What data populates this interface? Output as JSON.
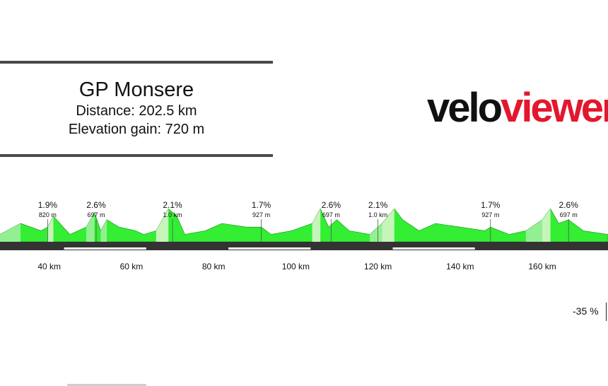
{
  "race": {
    "title": "GP Monsere",
    "distance": "Distance: 202.5 km",
    "elevation_gain": "Elevation gain: 720 m"
  },
  "logo": {
    "part1": "velo",
    "part2": "viewer",
    "colors": {
      "part1": "#111111",
      "part2": "#e3172d"
    }
  },
  "readout": {
    "grade": "-35 %"
  },
  "colors": {
    "profile_fill": "#33ee33",
    "profile_light": "#9cf09c",
    "profile_pale": "#d6f5c8",
    "road_band": "#333333",
    "segment_bar": "#ffffff",
    "frame_line": "#4a4a4a"
  },
  "chart_data": {
    "type": "area",
    "xlabel": "",
    "ylabel": "",
    "xunit": "km",
    "xlim": [
      28,
      176
    ],
    "x_ticks": [
      {
        "value": 40,
        "label": "40 km"
      },
      {
        "value": 60,
        "label": "60 km"
      },
      {
        "value": 80,
        "label": "80 km"
      },
      {
        "value": 100,
        "label": "100 km"
      },
      {
        "value": 120,
        "label": "120 km"
      },
      {
        "value": 140,
        "label": "140 km"
      },
      {
        "value": 160,
        "label": "160 km"
      }
    ],
    "climbs": [
      {
        "km": 39.6,
        "grade": "1.9%",
        "length": "820 m"
      },
      {
        "km": 51.4,
        "grade": "2.6%",
        "length": "697 m"
      },
      {
        "km": 70.0,
        "grade": "2.1%",
        "length": "1.0 km"
      },
      {
        "km": 91.6,
        "grade": "1.7%",
        "length": "927 m"
      },
      {
        "km": 108.6,
        "grade": "2.6%",
        "length": "697 m"
      },
      {
        "km": 120.0,
        "grade": "2.1%",
        "length": "1.0 km"
      },
      {
        "km": 147.4,
        "grade": "1.7%",
        "length": "927 m"
      },
      {
        "km": 166.4,
        "grade": "2.6%",
        "length": "697 m"
      }
    ],
    "loop_segments": [
      {
        "start_km": 43.6,
        "end_km": 63.6
      },
      {
        "start_km": 83.6,
        "end_km": 103.6
      },
      {
        "start_km": 123.6,
        "end_km": 143.6
      }
    ],
    "profile": [
      [
        28,
        2
      ],
      [
        33,
        5
      ],
      [
        38,
        3
      ],
      [
        39.6,
        4
      ],
      [
        41,
        7
      ],
      [
        45,
        2
      ],
      [
        49,
        4
      ],
      [
        51,
        8
      ],
      [
        52.5,
        3
      ],
      [
        54,
        6
      ],
      [
        57,
        4
      ],
      [
        61,
        3
      ],
      [
        63,
        2
      ],
      [
        66,
        3
      ],
      [
        69,
        9
      ],
      [
        71,
        7
      ],
      [
        73,
        2
      ],
      [
        78,
        3
      ],
      [
        82,
        5
      ],
      [
        88,
        4
      ],
      [
        91.6,
        4
      ],
      [
        94,
        2
      ],
      [
        99,
        3
      ],
      [
        104,
        5
      ],
      [
        106,
        9
      ],
      [
        108,
        4
      ],
      [
        110,
        6
      ],
      [
        113,
        3
      ],
      [
        118,
        2
      ],
      [
        121,
        5
      ],
      [
        124,
        9
      ],
      [
        126,
        6
      ],
      [
        130,
        3
      ],
      [
        134,
        5
      ],
      [
        140,
        4
      ],
      [
        146,
        3
      ],
      [
        147.4,
        4
      ],
      [
        152,
        2
      ],
      [
        156,
        3
      ],
      [
        160,
        6
      ],
      [
        162,
        9
      ],
      [
        164,
        5
      ],
      [
        166.4,
        6
      ],
      [
        170,
        3
      ],
      [
        176,
        2
      ]
    ]
  }
}
